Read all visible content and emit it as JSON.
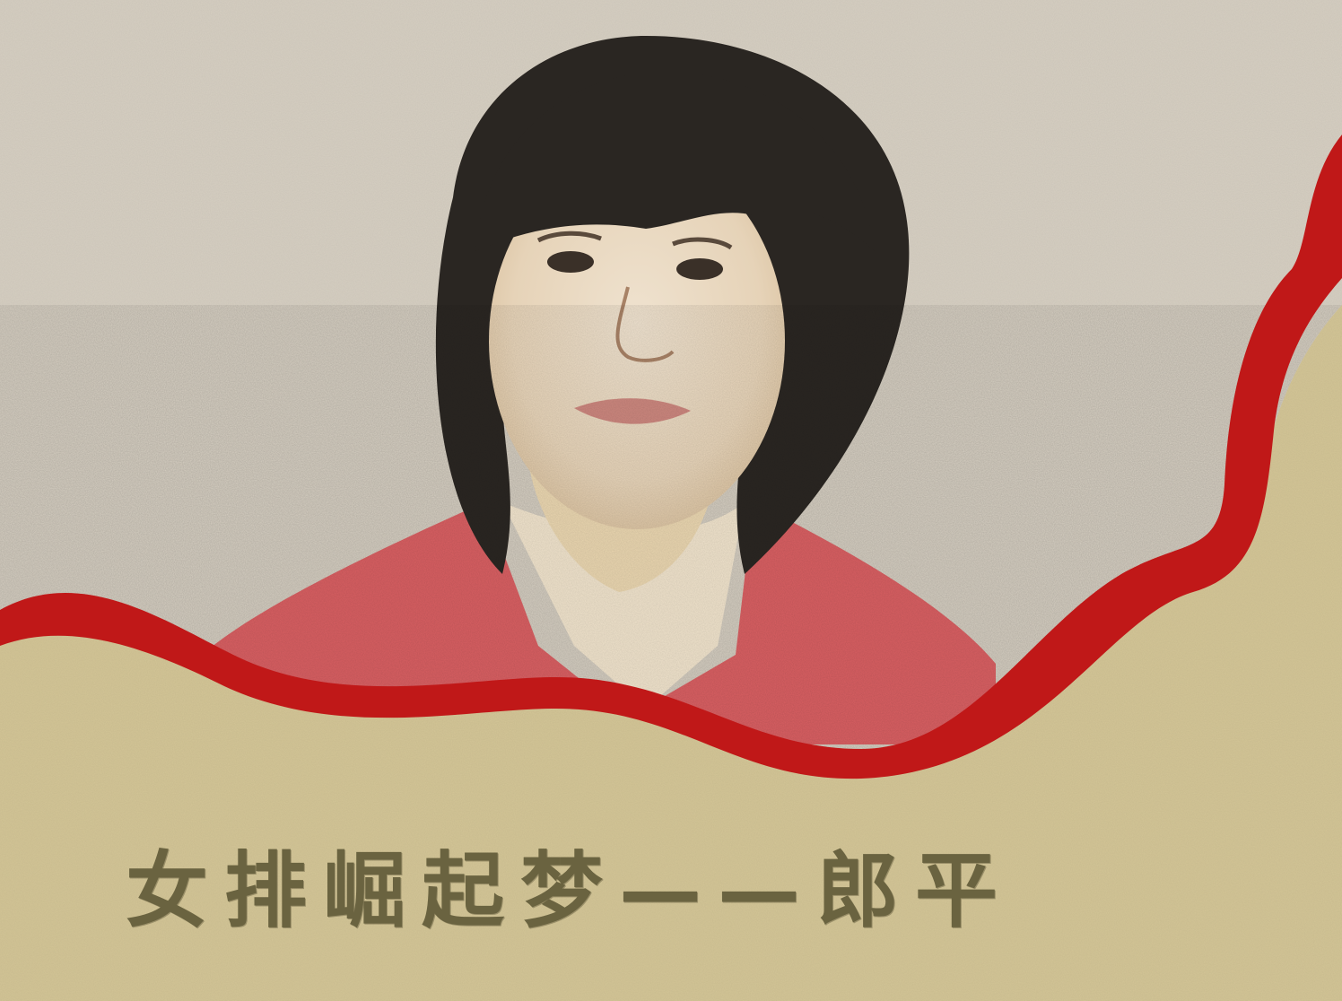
{
  "poster": {
    "title": "女排崛起梦——郎平"
  },
  "colors": {
    "upper_background": "#d6cfc2",
    "lower_background": "#d3c596",
    "ribbon": "#c01818",
    "title_text": "#6a6340",
    "hair": "#2a2622",
    "jacket": "#d8565a",
    "skin": "#e8d6bc"
  },
  "illustration": {
    "subject": "portrait-sketch"
  }
}
